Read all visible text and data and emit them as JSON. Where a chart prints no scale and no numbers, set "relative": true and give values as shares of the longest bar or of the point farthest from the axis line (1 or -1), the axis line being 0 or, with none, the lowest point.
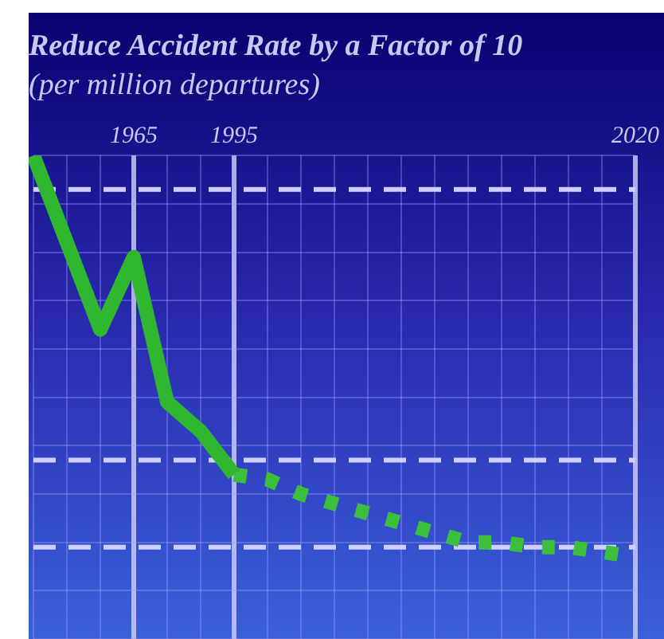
{
  "chart_data": {
    "type": "line",
    "title": "Reduce Accident Rate by a Factor of 10",
    "subtitle": "(per million departures)",
    "relative": true,
    "categories": [
      null,
      null,
      null,
      "1965",
      null,
      null,
      "1995",
      null,
      null,
      null,
      null,
      null,
      null,
      null,
      null,
      null,
      null,
      null,
      "2020"
    ],
    "series": [
      {
        "color": "#2fb82f",
        "line_style": "solid",
        "values": [
          1,
          0.82,
          0.64,
          0.79,
          0.49,
          0.43,
          0.34,
          null,
          null,
          null,
          null,
          null,
          null,
          null,
          null,
          null,
          null,
          null,
          null
        ]
      },
      {
        "color": "#3cc03c",
        "line_style": "dotted",
        "values": [
          null,
          null,
          null,
          null,
          null,
          null,
          0.34,
          0.33,
          0.3,
          0.28,
          0.26,
          0.24,
          0.22,
          0.2,
          0.2,
          0.19,
          0.19,
          0.18,
          0.17
        ]
      }
    ],
    "ref_lines": [
      {
        "axis": "y",
        "value": 0.93,
        "color": "#d0d0ff",
        "line_style": "dashed"
      },
      {
        "axis": "y",
        "value": 0.37,
        "color": "#d0d0ff",
        "line_style": "dashed"
      },
      {
        "axis": "y",
        "value": 0.19,
        "color": "#d0d0ff",
        "line_style": "dashed"
      }
    ],
    "grid": true,
    "legend": false,
    "marker": "none"
  }
}
